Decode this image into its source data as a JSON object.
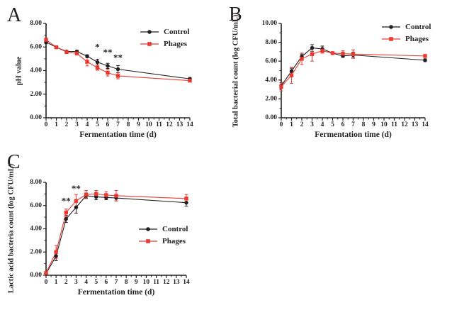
{
  "figure": {
    "accent_black": "#231f20",
    "accent_red": "#e93a32"
  },
  "chart_data": [
    {
      "type": "line",
      "panel_label": "A",
      "xlabel": "Fermentation time (d)",
      "ylabel": "pH value",
      "xlim": [
        0,
        14
      ],
      "ylim": [
        0,
        8
      ],
      "xticks": [
        0,
        1,
        2,
        3,
        4,
        5,
        6,
        7,
        8,
        9,
        10,
        11,
        12,
        13,
        14
      ],
      "x_minor_step": 0.5,
      "ytick_values": [
        0,
        2,
        4,
        6,
        8
      ],
      "ytick_labels": [
        "0.00",
        "2.00",
        "4.00",
        "6.00",
        "8.00"
      ],
      "y_minor_step": 1,
      "grid": false,
      "legend_pos": "top-right",
      "x": [
        0,
        1,
        2,
        3,
        4,
        5,
        6,
        7,
        14
      ],
      "series": [
        {
          "name": "Control",
          "color": "#231f20",
          "marker": "circle",
          "values": [
            6.42,
            5.98,
            5.62,
            5.62,
            5.22,
            4.72,
            4.4,
            4.12,
            3.3
          ],
          "errors": [
            0.15,
            0.08,
            0.08,
            0.1,
            0.12,
            0.25,
            0.22,
            0.3,
            0.12
          ]
        },
        {
          "name": "Phages",
          "color": "#e93a32",
          "marker": "square",
          "values": [
            6.62,
            5.98,
            5.57,
            5.45,
            4.75,
            4.25,
            3.82,
            3.55,
            3.15
          ],
          "errors": [
            0.1,
            0.08,
            0.08,
            0.12,
            0.35,
            0.22,
            0.28,
            0.25,
            0.1
          ]
        }
      ],
      "annotations": [
        {
          "text": "*",
          "x": 5,
          "y": 6.05
        },
        {
          "text": "**",
          "x": 6,
          "y": 5.6
        },
        {
          "text": "**",
          "x": 7,
          "y": 5.15
        }
      ]
    },
    {
      "type": "line",
      "panel_label": "B",
      "xlabel": "Fermentation time (d)",
      "ylabel": "Total bacterial count (log CFU/mL)",
      "xlim": [
        0,
        14
      ],
      "ylim": [
        0,
        10
      ],
      "xticks": [
        0,
        1,
        2,
        3,
        4,
        5,
        6,
        7,
        8,
        9,
        10,
        11,
        12,
        13,
        14
      ],
      "x_minor_step": 0.5,
      "ytick_values": [
        0,
        2,
        4,
        6,
        8,
        10
      ],
      "ytick_labels": [
        "0.00",
        "2.00",
        "4.00",
        "6.00",
        "8.00",
        "10.00"
      ],
      "y_minor_step": 1,
      "grid": false,
      "legend_pos": "top-right",
      "x": [
        0,
        1,
        2,
        3,
        4,
        5,
        6,
        7,
        14
      ],
      "series": [
        {
          "name": "Control",
          "color": "#231f20",
          "marker": "circle",
          "values": [
            3.4,
            4.95,
            6.5,
            7.4,
            7.3,
            6.85,
            6.55,
            6.65,
            6.1
          ],
          "errors": [
            0.3,
            0.3,
            0.25,
            0.35,
            0.3,
            0.1,
            0.15,
            0.3,
            0.15
          ]
        },
        {
          "name": "Phages",
          "color": "#e93a32",
          "marker": "square",
          "values": [
            3.3,
            4.5,
            6.25,
            6.75,
            7.1,
            6.85,
            6.8,
            6.75,
            6.55
          ],
          "errors": [
            0.45,
            0.85,
            0.6,
            0.75,
            0.25,
            0.1,
            0.3,
            0.45,
            0.15
          ]
        }
      ],
      "annotations": []
    },
    {
      "type": "line",
      "panel_label": "C",
      "xlabel": "Fermentation time (d)",
      "ylabel": "Lactic acid bacteria count (log CFU/mL)",
      "xlim": [
        0,
        14
      ],
      "ylim": [
        0,
        8
      ],
      "xticks": [
        0,
        1,
        2,
        3,
        4,
        5,
        6,
        7,
        8,
        9,
        10,
        11,
        12,
        13,
        14
      ],
      "x_minor_step": 0.5,
      "ytick_values": [
        0,
        2,
        4,
        6,
        8
      ],
      "ytick_labels": [
        "0.00",
        "2.00",
        "4.00",
        "6.00",
        "8.00"
      ],
      "y_minor_step": 1,
      "grid": false,
      "legend_pos": "middle-right",
      "x": [
        0,
        1,
        2,
        3,
        4,
        5,
        6,
        7,
        14
      ],
      "series": [
        {
          "name": "Control",
          "color": "#231f20",
          "marker": "circle",
          "values": [
            0.15,
            1.65,
            4.85,
            5.85,
            6.85,
            6.75,
            6.7,
            6.65,
            6.25
          ],
          "errors": [
            0.08,
            0.4,
            0.3,
            0.5,
            0.2,
            0.25,
            0.2,
            0.25,
            0.3
          ]
        },
        {
          "name": "Phages",
          "color": "#e93a32",
          "marker": "square",
          "values": [
            0.2,
            2.0,
            5.4,
            6.4,
            6.95,
            7.0,
            6.9,
            6.85,
            6.6
          ],
          "errors": [
            0.08,
            0.55,
            0.3,
            0.55,
            0.35,
            0.3,
            0.3,
            0.45,
            0.35
          ]
        }
      ],
      "annotations": [
        {
          "text": "**",
          "x": 2,
          "y": 6.45
        },
        {
          "text": "**",
          "x": 3,
          "y": 7.5
        }
      ]
    }
  ]
}
